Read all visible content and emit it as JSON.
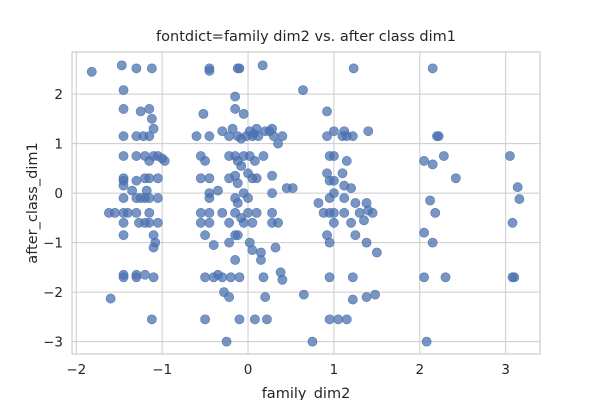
{
  "chart_data": {
    "type": "scatter",
    "title": "fontdict=family dim2 vs. after class dim1",
    "xlabel": "family_dim2",
    "ylabel": "after_class_dim1",
    "xlim": [
      -2.05,
      3.4
    ],
    "ylim": [
      -3.25,
      2.85
    ],
    "xticks": [
      -2,
      -1,
      0,
      1,
      2,
      3
    ],
    "yticks": [
      -3,
      -2,
      -1,
      0,
      1,
      2
    ],
    "xtick_labels": [
      "−2",
      "−1",
      "0",
      "1",
      "2",
      "3"
    ],
    "ytick_labels": [
      "−3",
      "−2",
      "−1",
      "0",
      "1",
      "2"
    ],
    "grid": true,
    "marker_color": "#4c72b0",
    "marker_alpha": 0.75,
    "background": "#ffffff",
    "grid_color": "#cccccc",
    "points": [
      [
        -1.82,
        2.45
      ],
      [
        -1.47,
        2.58
      ],
      [
        -1.3,
        2.52
      ],
      [
        -1.12,
        2.52
      ],
      [
        -0.45,
        2.52
      ],
      [
        -0.45,
        2.47
      ],
      [
        -0.12,
        2.52
      ],
      [
        -0.1,
        2.52
      ],
      [
        0.17,
        2.58
      ],
      [
        0.64,
        2.08
      ],
      [
        1.23,
        2.52
      ],
      [
        2.15,
        2.52
      ],
      [
        -1.45,
        2.08
      ],
      [
        -1.45,
        1.7
      ],
      [
        -1.45,
        1.15
      ],
      [
        -1.45,
        0.75
      ],
      [
        -1.45,
        0.3
      ],
      [
        -1.45,
        0.25
      ],
      [
        -1.45,
        0.15
      ],
      [
        -1.45,
        -0.1
      ],
      [
        -1.45,
        -0.4
      ],
      [
        -1.45,
        -0.6
      ],
      [
        -1.45,
        -0.85
      ],
      [
        -1.45,
        -1.65
      ],
      [
        -1.45,
        -1.7
      ],
      [
        -1.62,
        -0.4
      ],
      [
        -1.55,
        -0.4
      ],
      [
        -1.4,
        -0.4
      ],
      [
        -1.6,
        -2.13
      ],
      [
        -1.3,
        1.15
      ],
      [
        -1.3,
        0.75
      ],
      [
        -1.3,
        0.25
      ],
      [
        -1.3,
        -0.1
      ],
      [
        -1.3,
        -0.4
      ],
      [
        -1.3,
        -1.7
      ],
      [
        -1.3,
        -1.65
      ],
      [
        -1.25,
        1.65
      ],
      [
        -1.22,
        1.15
      ],
      [
        -1.2,
        0.75
      ],
      [
        -1.2,
        0.3
      ],
      [
        -1.2,
        -0.1
      ],
      [
        -1.2,
        -0.6
      ],
      [
        -1.2,
        -1.65
      ],
      [
        -1.15,
        1.7
      ],
      [
        -1.15,
        1.15
      ],
      [
        -1.15,
        0.65
      ],
      [
        -1.15,
        0.3
      ],
      [
        -1.15,
        -0.1
      ],
      [
        -1.15,
        -0.4
      ],
      [
        -1.15,
        -0.6
      ],
      [
        -1.12,
        1.5
      ],
      [
        -1.1,
        1.3
      ],
      [
        -1.1,
        0.75
      ],
      [
        -1.1,
        -0.85
      ],
      [
        -1.1,
        -1.1
      ],
      [
        -1.1,
        -1.7
      ],
      [
        -1.12,
        -2.55
      ],
      [
        -1.05,
        0.75
      ],
      [
        -1.05,
        0.3
      ],
      [
        -1.05,
        -0.1
      ],
      [
        -1.05,
        -0.6
      ],
      [
        -1.08,
        -1.0
      ],
      [
        -1.0,
        0.7
      ],
      [
        -0.97,
        0.65
      ],
      [
        -1.27,
        -0.6
      ],
      [
        -1.25,
        -0.1
      ],
      [
        -1.18,
        0.05
      ],
      [
        -1.35,
        0.05
      ],
      [
        -0.6,
        1.15
      ],
      [
        -0.55,
        0.75
      ],
      [
        -0.55,
        0.3
      ],
      [
        -0.55,
        -0.4
      ],
      [
        -0.55,
        -0.6
      ],
      [
        -0.52,
        1.6
      ],
      [
        -0.5,
        0.65
      ],
      [
        -0.5,
        -0.85
      ],
      [
        -0.5,
        -1.7
      ],
      [
        -0.5,
        -2.55
      ],
      [
        -0.45,
        1.15
      ],
      [
        -0.45,
        0.3
      ],
      [
        -0.45,
        0.0
      ],
      [
        -0.45,
        -0.1
      ],
      [
        -0.45,
        -0.4
      ],
      [
        -0.45,
        -0.6
      ],
      [
        -0.4,
        -1.05
      ],
      [
        -0.4,
        -1.7
      ],
      [
        -0.35,
        -1.65
      ],
      [
        -0.35,
        0.05
      ],
      [
        -0.3,
        1.25
      ],
      [
        -0.3,
        -0.4
      ],
      [
        -0.3,
        -1.7
      ],
      [
        -0.28,
        -2.0
      ],
      [
        -0.25,
        -3.0
      ],
      [
        -0.22,
        1.15
      ],
      [
        -0.22,
        0.75
      ],
      [
        -0.22,
        0.3
      ],
      [
        -0.22,
        -0.6
      ],
      [
        -0.22,
        -1.0
      ],
      [
        -0.22,
        -2.1
      ],
      [
        -0.2,
        -1.7
      ],
      [
        -0.18,
        1.3
      ],
      [
        -0.15,
        1.95
      ],
      [
        -0.15,
        1.7
      ],
      [
        -0.15,
        0.75
      ],
      [
        -0.15,
        0.35
      ],
      [
        -0.15,
        -0.1
      ],
      [
        -0.15,
        -0.4
      ],
      [
        -0.15,
        -0.85
      ],
      [
        -0.15,
        -1.35
      ],
      [
        -0.12,
        1.15
      ],
      [
        -0.12,
        0.65
      ],
      [
        -0.12,
        0.2
      ],
      [
        -0.12,
        -0.2
      ],
      [
        -0.12,
        -0.85
      ],
      [
        -0.1,
        -1.7
      ],
      [
        -0.1,
        -2.55
      ],
      [
        -0.08,
        1.1
      ],
      [
        -0.08,
        0.55
      ],
      [
        -0.08,
        -0.5
      ],
      [
        -0.05,
        1.6
      ],
      [
        -0.05,
        0.75
      ],
      [
        -0.05,
        0.0
      ],
      [
        -0.05,
        -0.6
      ],
      [
        -0.02,
        1.15
      ],
      [
        0.0,
        0.4
      ],
      [
        0.0,
        -0.1
      ],
      [
        0.0,
        -0.4
      ],
      [
        0.02,
        1.25
      ],
      [
        0.02,
        0.75
      ],
      [
        0.02,
        -1.0
      ],
      [
        0.05,
        1.15
      ],
      [
        0.05,
        0.3
      ],
      [
        0.05,
        -0.6
      ],
      [
        0.05,
        -1.15
      ],
      [
        0.07,
        1.2
      ],
      [
        0.08,
        0.65
      ],
      [
        0.08,
        -2.55
      ],
      [
        0.1,
        1.3
      ],
      [
        0.1,
        0.3
      ],
      [
        0.1,
        -0.4
      ],
      [
        0.12,
        1.15
      ],
      [
        0.15,
        -1.2
      ],
      [
        0.15,
        -1.35
      ],
      [
        0.18,
        0.75
      ],
      [
        0.18,
        -1.7
      ],
      [
        0.2,
        1.25
      ],
      [
        0.2,
        -2.1
      ],
      [
        0.22,
        -2.55
      ],
      [
        0.25,
        1.25
      ],
      [
        0.28,
        1.3
      ],
      [
        0.28,
        0.35
      ],
      [
        0.28,
        0.0
      ],
      [
        0.28,
        -0.4
      ],
      [
        0.28,
        -0.6
      ],
      [
        0.3,
        1.15
      ],
      [
        0.32,
        -1.1
      ],
      [
        0.35,
        1.0
      ],
      [
        0.35,
        -0.6
      ],
      [
        0.38,
        -1.6
      ],
      [
        0.4,
        1.15
      ],
      [
        0.4,
        -1.75
      ],
      [
        0.45,
        0.1
      ],
      [
        0.52,
        0.1
      ],
      [
        0.65,
        -2.05
      ],
      [
        0.75,
        -3.0
      ],
      [
        0.82,
        -0.2
      ],
      [
        0.88,
        -0.4
      ],
      [
        0.92,
        0.4
      ],
      [
        0.92,
        -0.85
      ],
      [
        0.92,
        1.65
      ],
      [
        0.92,
        1.15
      ],
      [
        0.95,
        0.75
      ],
      [
        0.95,
        0.25
      ],
      [
        0.95,
        -0.1
      ],
      [
        0.95,
        -0.4
      ],
      [
        0.95,
        -1.0
      ],
      [
        0.95,
        -1.7
      ],
      [
        0.95,
        -2.55
      ],
      [
        1.0,
        1.25
      ],
      [
        1.0,
        0.75
      ],
      [
        1.0,
        0.25
      ],
      [
        1.0,
        0.0
      ],
      [
        1.0,
        -0.4
      ],
      [
        1.0,
        -0.6
      ],
      [
        1.05,
        -2.55
      ],
      [
        1.1,
        1.15
      ],
      [
        1.1,
        0.4
      ],
      [
        1.12,
        1.25
      ],
      [
        1.12,
        0.15
      ],
      [
        1.12,
        -0.1
      ],
      [
        1.12,
        -0.4
      ],
      [
        1.15,
        1.15
      ],
      [
        1.15,
        0.65
      ],
      [
        1.15,
        -2.55
      ],
      [
        1.2,
        0.1
      ],
      [
        1.2,
        -0.6
      ],
      [
        1.22,
        1.15
      ],
      [
        1.22,
        -1.7
      ],
      [
        1.22,
        -2.15
      ],
      [
        1.25,
        -0.2
      ],
      [
        1.25,
        -0.85
      ],
      [
        1.3,
        -0.4
      ],
      [
        1.35,
        -0.55
      ],
      [
        1.38,
        -0.2
      ],
      [
        1.38,
        -1.0
      ],
      [
        1.38,
        -2.1
      ],
      [
        1.4,
        1.25
      ],
      [
        1.4,
        -0.35
      ],
      [
        1.45,
        -0.4
      ],
      [
        1.48,
        -2.05
      ],
      [
        1.5,
        -1.2
      ],
      [
        2.05,
        0.65
      ],
      [
        2.05,
        -0.8
      ],
      [
        2.05,
        -1.7
      ],
      [
        2.08,
        -3.0
      ],
      [
        2.12,
        -0.15
      ],
      [
        2.15,
        -1.0
      ],
      [
        2.15,
        0.58
      ],
      [
        2.18,
        -0.4
      ],
      [
        2.2,
        1.15
      ],
      [
        2.22,
        1.15
      ],
      [
        2.28,
        0.75
      ],
      [
        2.3,
        -1.7
      ],
      [
        2.42,
        0.3
      ],
      [
        3.05,
        0.75
      ],
      [
        3.08,
        -0.6
      ],
      [
        3.08,
        -1.7
      ],
      [
        3.1,
        -1.7
      ],
      [
        3.14,
        0.12
      ],
      [
        3.16,
        -0.12
      ]
    ]
  }
}
